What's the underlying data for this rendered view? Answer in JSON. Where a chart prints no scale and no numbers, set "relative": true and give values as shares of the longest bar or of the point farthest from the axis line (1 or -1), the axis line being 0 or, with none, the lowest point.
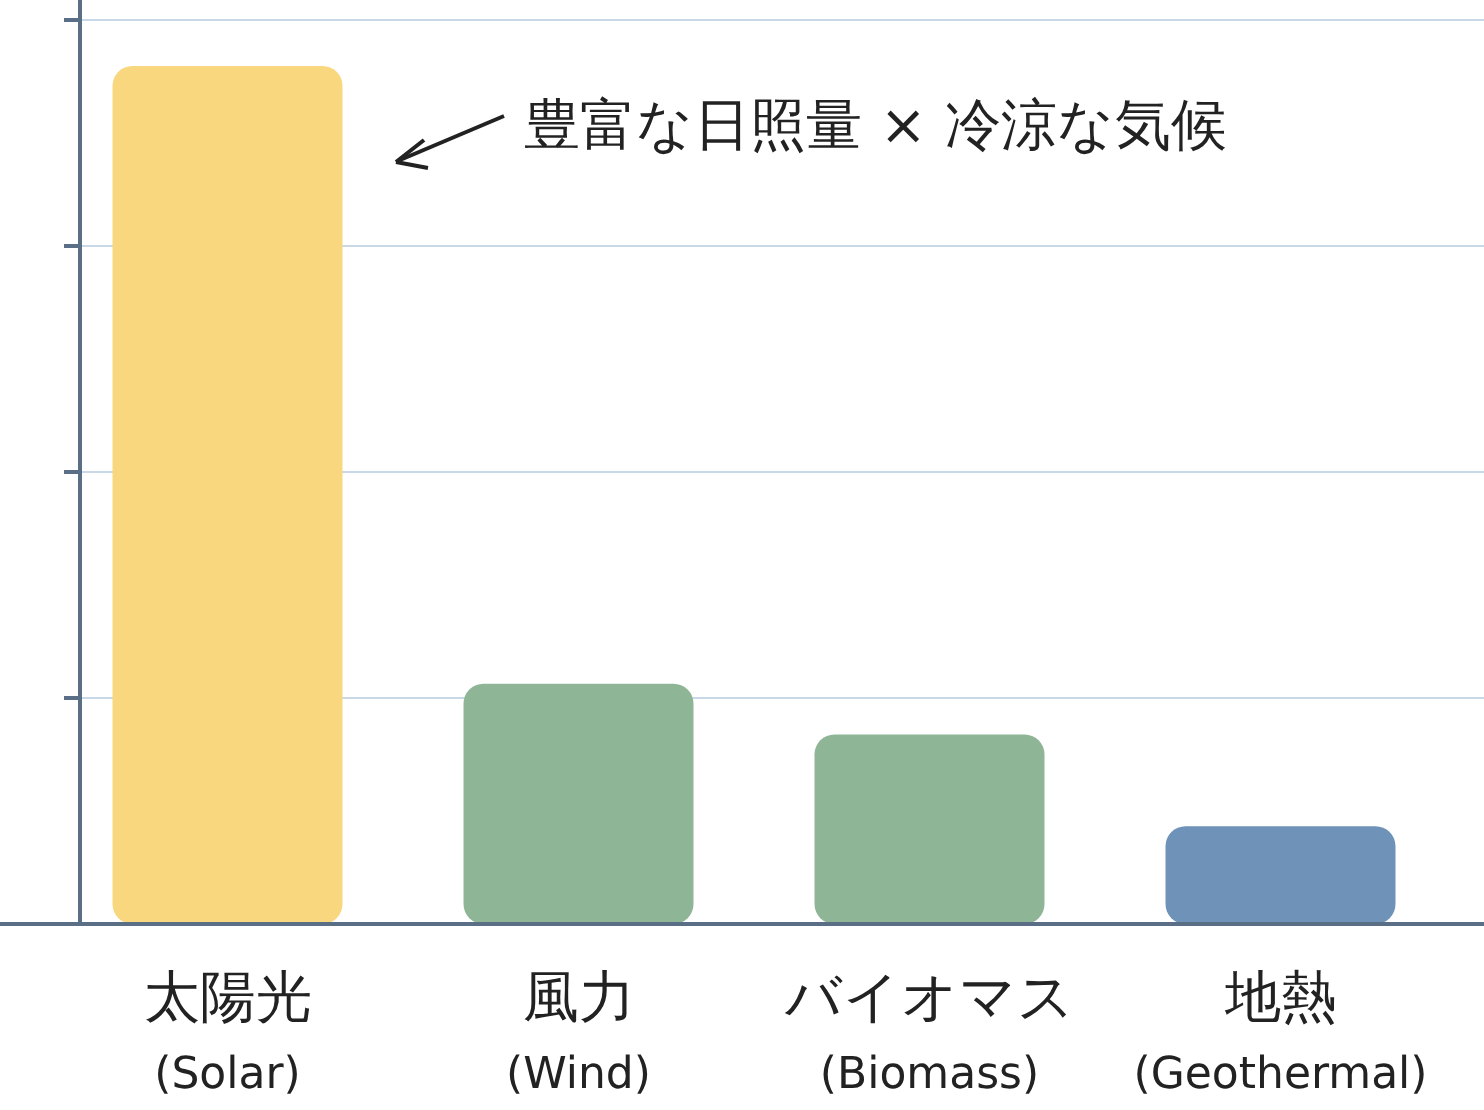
{
  "chart_data": {
    "type": "bar",
    "relative": true,
    "categories": [
      "太陽光\n(Solar)",
      "風力\n(Wind)",
      "バイオマス\n(Biomass)",
      "地熱\n(Geothermal)"
    ],
    "values": [
      1,
      0.28,
      0.221,
      0.114
    ],
    "colors": [
      "#f9d77e",
      "#8fb597",
      "#8fb597",
      "#6e92b8"
    ],
    "grid": "y",
    "annotations": [
      "豊富な日照量 × 冷涼な気候"
    ]
  }
}
